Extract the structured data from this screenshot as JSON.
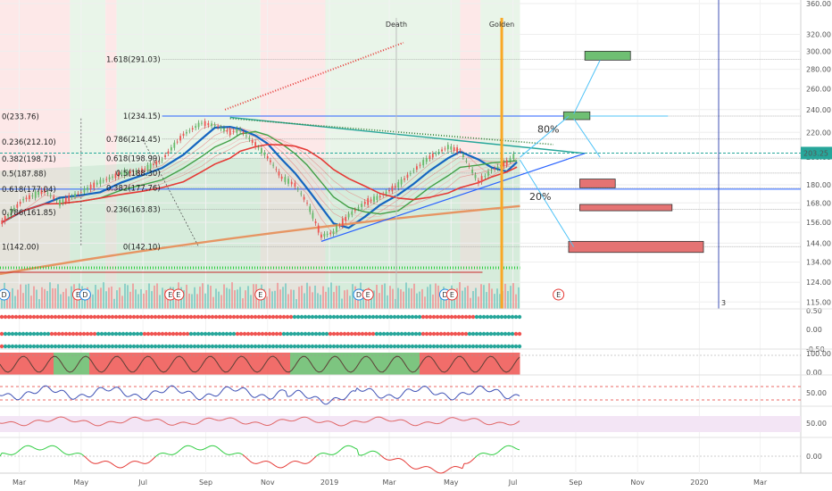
{
  "chart_data": [
    {
      "type": "candlestick",
      "panel": "price",
      "y_axis_ticks": [
        360,
        320,
        300,
        280,
        260,
        240,
        220,
        200,
        180,
        168,
        156,
        144,
        134,
        124,
        115
      ],
      "y_axis_tick_labels": [
        "360.00",
        "320.00",
        "300.00",
        "280.00",
        "260.00",
        "240.00",
        "220.00",
        "200.00",
        "180.00",
        "168.00",
        "156.00",
        "144.00",
        "134.00",
        "124.00",
        "115.00"
      ],
      "ylim": [
        112,
        365
      ],
      "y_scale": "log",
      "last_price": 203.25,
      "last_price_label": "203.25",
      "x_tick_labels": [
        "Mar",
        "May",
        "Jul",
        "Sep",
        "Nov",
        "2019",
        "Mar",
        "May",
        "Jul",
        "Sep",
        "Nov",
        "2020",
        "Mar"
      ],
      "x_tick_dates": [
        "2018-03",
        "2018-05",
        "2018-07",
        "2018-09",
        "2018-11",
        "2019-01",
        "2019-03",
        "2019-05",
        "2019-07",
        "2019-09",
        "2019-11",
        "2020-01",
        "2020-03"
      ],
      "xlim": [
        "2018-02-10",
        "2020-04-10"
      ],
      "price_path": [
        [
          "2018-02-12",
          156
        ],
        [
          "2018-03-05",
          170
        ],
        [
          "2018-03-26",
          176
        ],
        [
          "2018-04-10",
          168
        ],
        [
          "2018-05-01",
          175
        ],
        [
          "2018-05-20",
          182
        ],
        [
          "2018-06-10",
          188
        ],
        [
          "2018-06-30",
          190
        ],
        [
          "2018-07-20",
          198
        ],
        [
          "2018-08-10",
          218
        ],
        [
          "2018-08-28",
          228
        ],
        [
          "2018-09-10",
          226
        ],
        [
          "2018-09-25",
          220
        ],
        [
          "2018-10-05",
          222
        ],
        [
          "2018-10-20",
          210
        ],
        [
          "2018-11-01",
          200
        ],
        [
          "2018-11-15",
          185
        ],
        [
          "2018-11-28",
          180
        ],
        [
          "2018-12-10",
          168
        ],
        [
          "2018-12-24",
          148
        ],
        [
          "2019-01-05",
          150
        ],
        [
          "2019-01-20",
          160
        ],
        [
          "2019-02-05",
          168
        ],
        [
          "2019-02-20",
          172
        ],
        [
          "2019-03-10",
          180
        ],
        [
          "2019-03-25",
          190
        ],
        [
          "2019-04-10",
          200
        ],
        [
          "2019-04-28",
          208
        ],
        [
          "2019-05-10",
          205
        ],
        [
          "2019-05-28",
          182
        ],
        [
          "2019-06-10",
          190
        ],
        [
          "2019-06-25",
          196
        ],
        [
          "2019-07-05",
          203
        ]
      ],
      "fib_labels_left": [
        "0(233.76)",
        "0.236(212.10)",
        "0.382(198.71)",
        "0.5(187.88)",
        "0.618(177.04)",
        "0.786(161.85)",
        "1(142.00)"
      ],
      "fib_labels_mid": [
        "1.618(291.03)",
        "1(234.15)",
        "0.786(214.45)",
        "0.618(198.99)",
        "0.5(188.30)",
        "0.382(177.76)",
        "0.236(163.83)",
        "0(142.10)"
      ],
      "fib_level_values": [
        291.03,
        234.15,
        214.45,
        198.99,
        188.3,
        177.76,
        163.83,
        142.1
      ],
      "annotations": [
        "Death",
        "Golden",
        "80%",
        "20%",
        "3"
      ],
      "event_markers": [
        "D",
        "E",
        "D",
        "E",
        "E",
        "E",
        "D",
        "E",
        "D",
        "E"
      ],
      "target_boxes": [
        {
          "color": "#6fbf73",
          "low": 290,
          "high": 300
        },
        {
          "color": "#6fbf73",
          "low": 231,
          "high": 238
        },
        {
          "color": "#e57373",
          "low": 178,
          "high": 184
        },
        {
          "color": "#e57373",
          "low": 163,
          "high": 167
        },
        {
          "color": "#e57373",
          "low": 139,
          "high": 145
        }
      ]
    },
    {
      "type": "heatmap",
      "panel": "signal-strips",
      "y_axis_tick_labels": [
        "0.50",
        "0.00",
        "-0.50"
      ],
      "colors": {
        "bull": "#26a69a",
        "bear": "#ef5350"
      }
    },
    {
      "type": "area",
      "panel": "stochastic",
      "y_axis_tick_labels": [
        "100.00",
        "0.00"
      ],
      "regimes": [
        "bear",
        "bull",
        "bear",
        "bull",
        "bear",
        "bear"
      ]
    },
    {
      "type": "line",
      "panel": "rsi",
      "y_axis_tick_labels": [
        "50.00"
      ],
      "color": "#3f51b5"
    },
    {
      "type": "line",
      "panel": "oscillator",
      "y_axis_tick_labels": [
        "50.00"
      ],
      "color": "#e06666"
    },
    {
      "type": "line",
      "panel": "momentum",
      "y_axis_tick_labels": [
        "0.00"
      ],
      "colors": {
        "up": "#2ecc40",
        "down": "#e53935"
      }
    }
  ]
}
